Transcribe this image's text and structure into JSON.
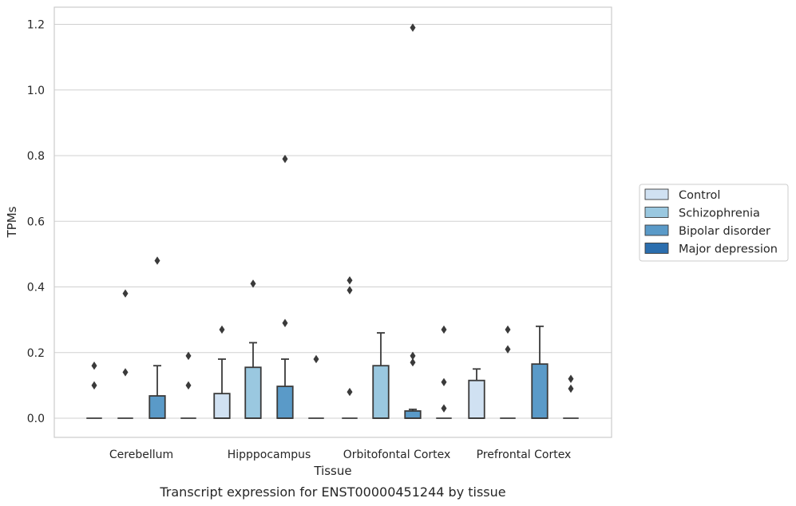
{
  "chart_data": {
    "type": "box",
    "xlabel": "Tissue",
    "ylabel": "TPMs",
    "caption": "Transcript expression for ENST00000451244 by tissue",
    "ylim": [
      -0.06,
      1.25
    ],
    "yticks": [
      "0.0",
      "0.2",
      "0.4",
      "0.6",
      "0.8",
      "1.0",
      "1.2"
    ],
    "grid": "horizontal",
    "legend_position": "right",
    "categories": [
      "Cerebellum",
      "Hipppocampus",
      "Orbitofontal Cortex",
      "Prefrontal Cortex"
    ],
    "series": [
      {
        "name": "Control",
        "color": "#d0e1f2",
        "boxes": [
          {
            "q1": 0,
            "median": 0,
            "q3": 0,
            "whisker_low": 0,
            "whisker_high": 0,
            "outliers": [
              0.16,
              0.1
            ]
          },
          {
            "q1": 0,
            "median": 0,
            "q3": 0.075,
            "whisker_low": 0,
            "whisker_high": 0.18,
            "outliers": [
              0.27
            ]
          },
          {
            "q1": 0,
            "median": 0,
            "q3": 0,
            "whisker_low": 0,
            "whisker_high": 0,
            "outliers": [
              0.42,
              0.39,
              0.08
            ]
          },
          {
            "q1": 0,
            "median": 0,
            "q3": 0.115,
            "whisker_low": 0,
            "whisker_high": 0.15,
            "outliers": []
          }
        ]
      },
      {
        "name": "Schizophrenia",
        "color": "#9ac8e0",
        "boxes": [
          {
            "q1": 0,
            "median": 0,
            "q3": 0,
            "whisker_low": 0,
            "whisker_high": 0,
            "outliers": [
              0.38,
              0.14
            ]
          },
          {
            "q1": 0,
            "median": 0,
            "q3": 0.155,
            "whisker_low": 0,
            "whisker_high": 0.23,
            "outliers": [
              0.41
            ]
          },
          {
            "q1": 0,
            "median": 0,
            "q3": 0.16,
            "whisker_low": 0,
            "whisker_high": 0.26,
            "outliers": []
          },
          {
            "q1": 0,
            "median": 0,
            "q3": 0,
            "whisker_low": 0,
            "whisker_high": 0,
            "outliers": [
              0.27,
              0.21
            ]
          }
        ]
      },
      {
        "name": "Bipolar disorder",
        "color": "#5a9ac8",
        "boxes": [
          {
            "q1": 0,
            "median": 0,
            "q3": 0.068,
            "whisker_low": 0,
            "whisker_high": 0.16,
            "outliers": [
              0.48
            ]
          },
          {
            "q1": 0,
            "median": 0,
            "q3": 0.097,
            "whisker_low": 0,
            "whisker_high": 0.18,
            "outliers": [
              0.79,
              0.29
            ]
          },
          {
            "q1": 0,
            "median": 0,
            "q3": 0.022,
            "whisker_low": 0,
            "whisker_high": 0.027,
            "outliers": [
              1.19,
              0.19,
              0.17
            ]
          },
          {
            "q1": 0,
            "median": 0,
            "q3": 0.165,
            "whisker_low": 0,
            "whisker_high": 0.28,
            "outliers": []
          }
        ]
      },
      {
        "name": "Major depression",
        "color": "#2b6eae",
        "boxes": [
          {
            "q1": 0,
            "median": 0,
            "q3": 0,
            "whisker_low": 0,
            "whisker_high": 0,
            "outliers": [
              0.19,
              0.1
            ]
          },
          {
            "q1": 0,
            "median": 0,
            "q3": 0,
            "whisker_low": 0,
            "whisker_high": 0,
            "outliers": [
              0.18
            ]
          },
          {
            "q1": 0,
            "median": 0,
            "q3": 0,
            "whisker_low": 0,
            "whisker_high": 0,
            "outliers": [
              0.27,
              0.11,
              0.03
            ]
          },
          {
            "q1": 0,
            "median": 0,
            "q3": 0,
            "whisker_low": 0,
            "whisker_high": 0,
            "outliers": [
              0.12,
              0.09
            ]
          }
        ]
      }
    ]
  }
}
